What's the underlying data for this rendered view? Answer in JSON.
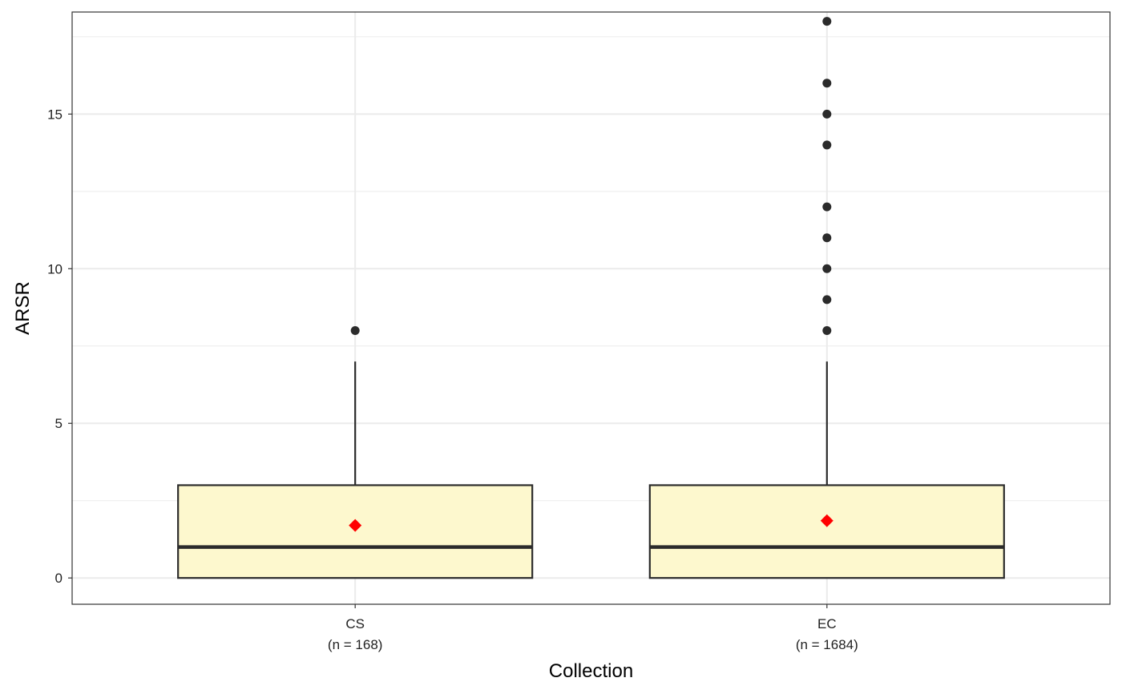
{
  "chart_data": {
    "type": "boxplot",
    "xlabel": "Collection",
    "ylabel": "ARSR",
    "ylim": [
      -0.85,
      18.3
    ],
    "yticks": [
      0,
      5,
      10,
      15
    ],
    "grid": true,
    "colors": {
      "box_fill": "#fdf8ce",
      "box_stroke": "#2b2b2b",
      "mean_marker": "#ff0000",
      "outlier": "#2b2b2b",
      "grid": "#ebebeb",
      "panel_border": "#333333"
    },
    "categories": [
      "CS",
      "EC"
    ],
    "category_sublabels": [
      "(n = 168)",
      "(n = 1684)"
    ],
    "boxes": [
      {
        "category": "CS",
        "n": 168,
        "min": 0,
        "q1": 0,
        "median": 1,
        "q3": 3,
        "max": 7,
        "mean": 1.7,
        "outliers": [
          8
        ]
      },
      {
        "category": "EC",
        "n": 1684,
        "min": 0,
        "q1": 0,
        "median": 1,
        "q3": 3,
        "max": 7,
        "mean": 1.85,
        "outliers": [
          8,
          9,
          10,
          11,
          12,
          14,
          15,
          16,
          18
        ]
      }
    ]
  }
}
